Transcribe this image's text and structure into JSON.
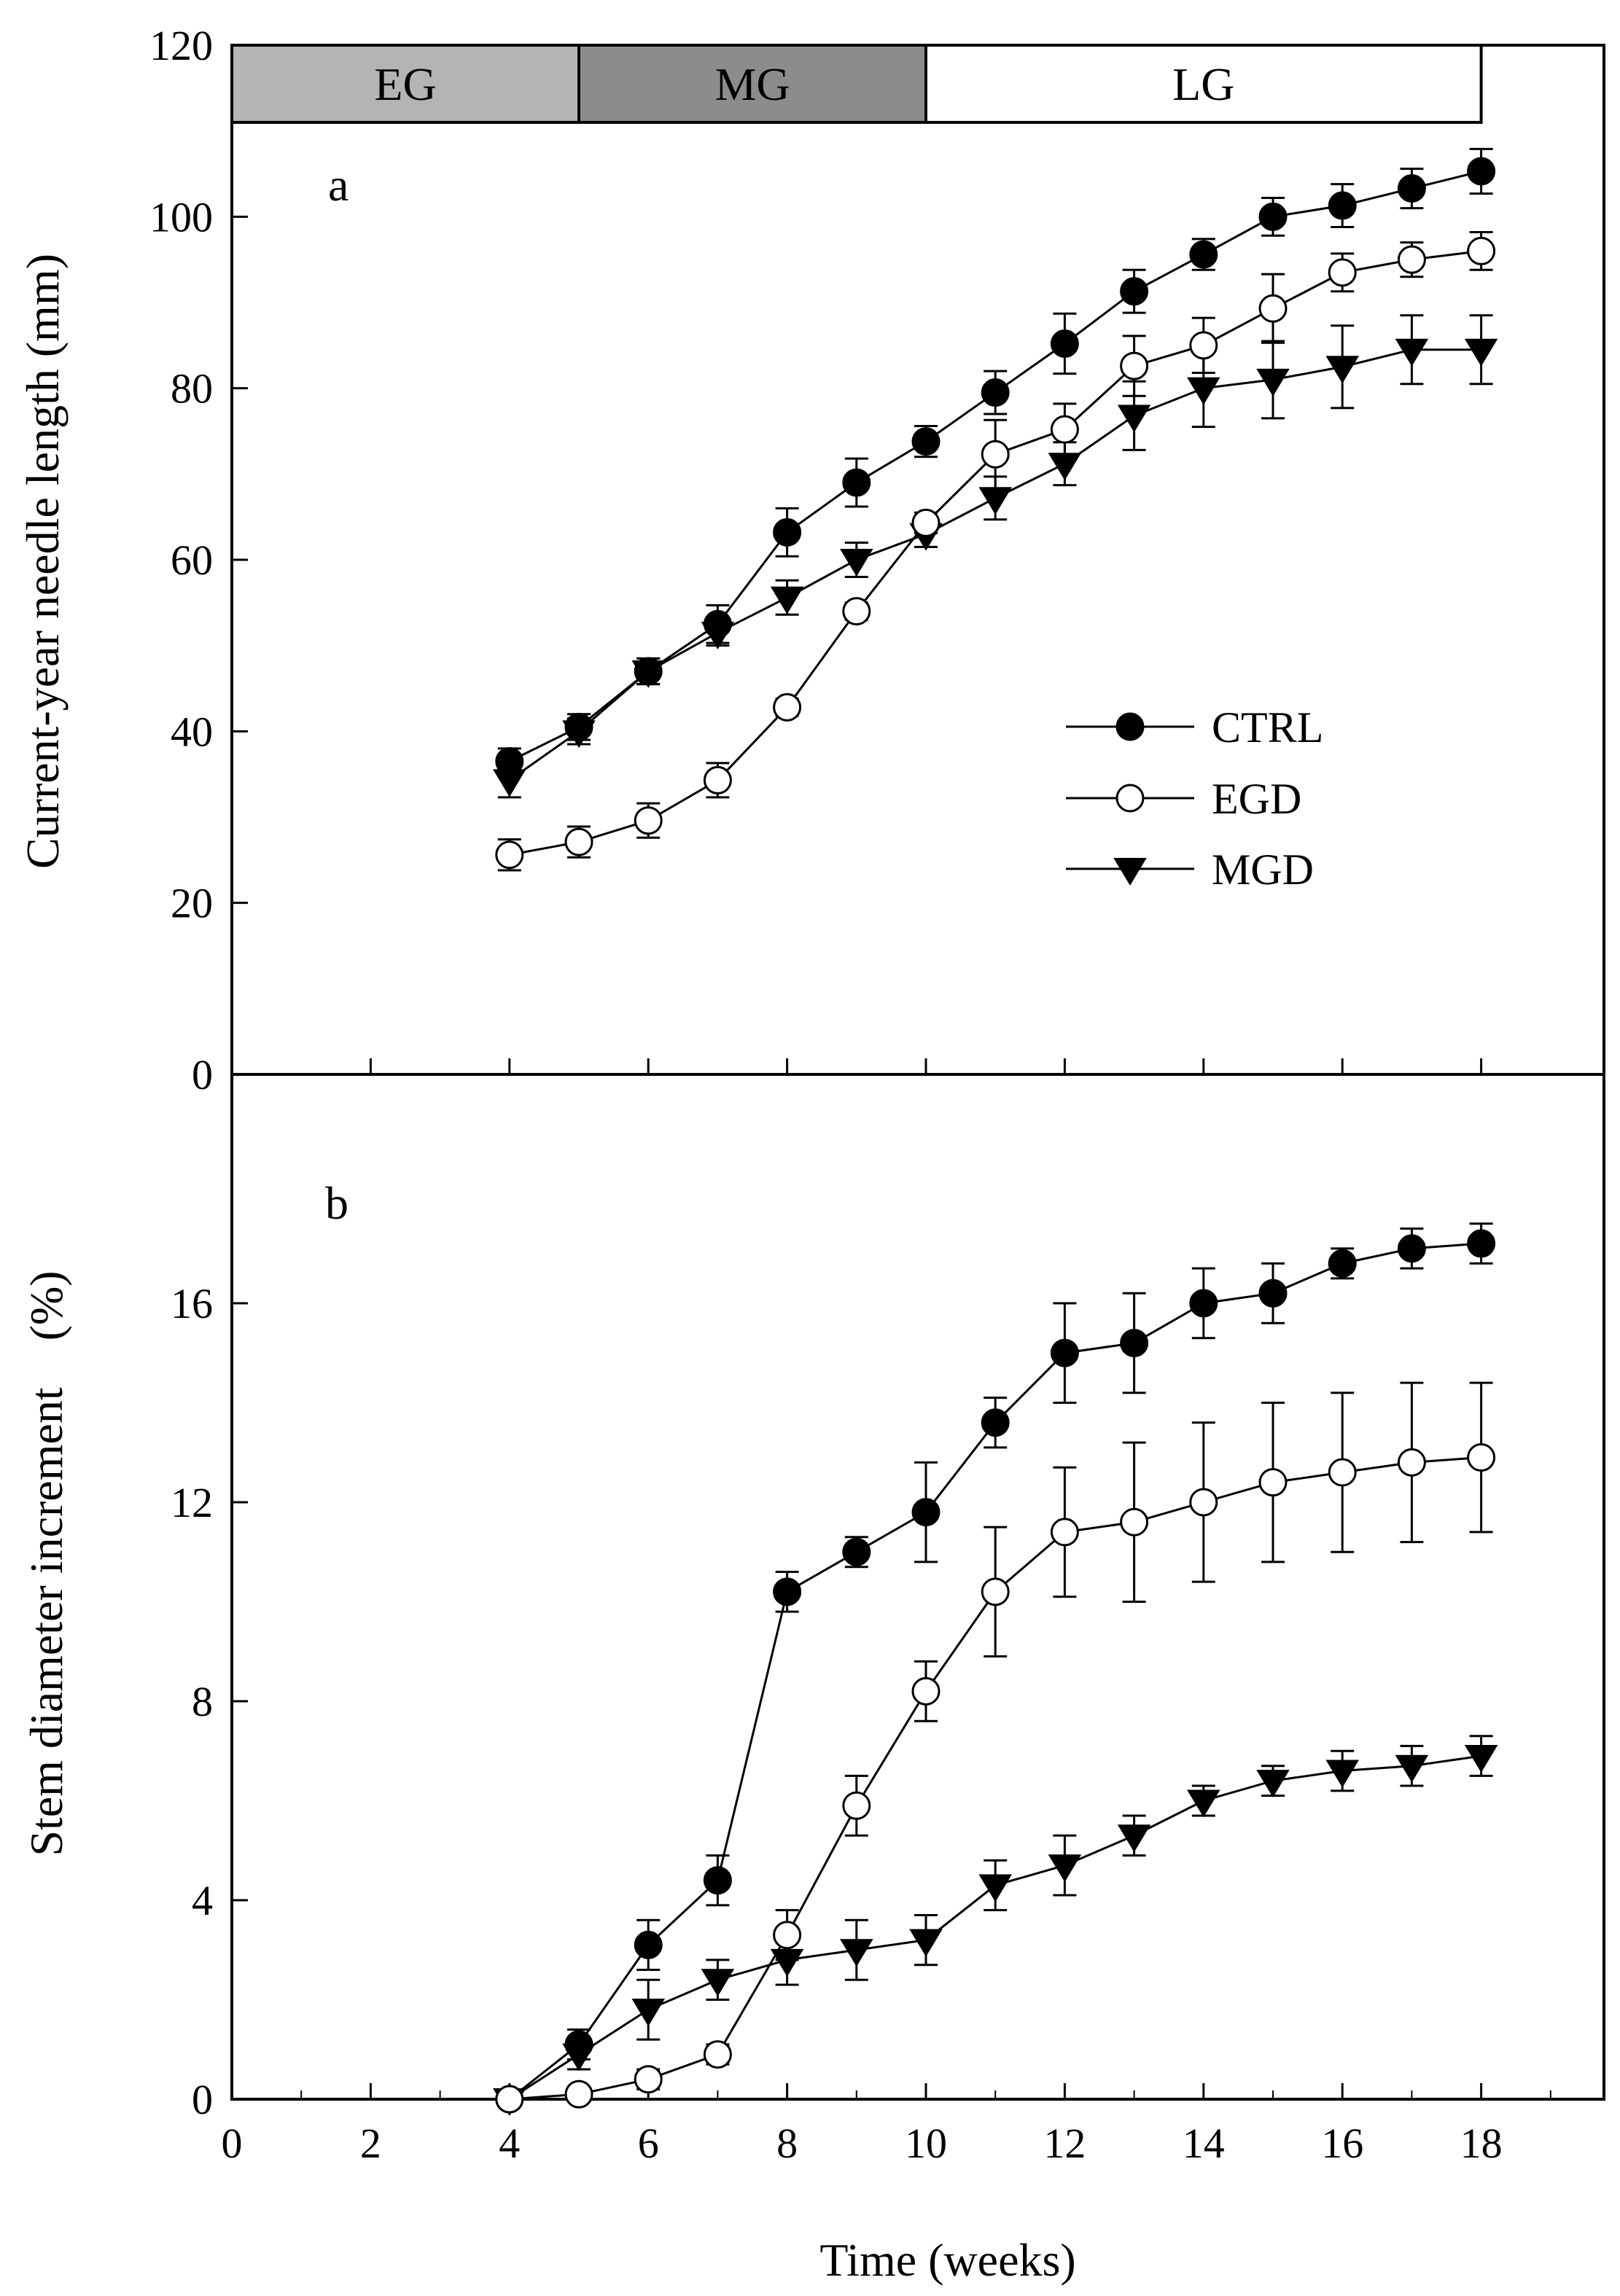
{
  "phases": {
    "labels": [
      "EG",
      "MG",
      "LG"
    ],
    "spans": [
      [
        0,
        5
      ],
      [
        5,
        10
      ],
      [
        10,
        18
      ]
    ],
    "colors": [
      "#b4b4b4",
      "#8c8c8c",
      "#ffffff"
    ]
  },
  "axes": {
    "x_title": "Time (weeks)",
    "x_ticks": [
      "0",
      "2",
      "4",
      "6",
      "8",
      "10",
      "12",
      "14",
      "16",
      "18"
    ],
    "a_y_title": "Current-year needle length (mm)",
    "a_y_ticks": [
      "0",
      "20",
      "40",
      "60",
      "80",
      "100",
      "120"
    ],
    "b_y_title": "Stem diameter increment　(%)",
    "b_y_ticks": [
      "0",
      "4",
      "8",
      "12",
      "16"
    ]
  },
  "legend": {
    "ctrl": "CTRL",
    "egd": "EGD",
    "mgd": "MGD"
  },
  "chart_data": [
    {
      "type": "line",
      "panel": "a",
      "xlabel": "",
      "ylabel": "Current-year needle length (mm)",
      "xlim": [
        0,
        20
      ],
      "ylim": [
        0,
        120
      ],
      "x": [
        4,
        5,
        6,
        7,
        8,
        9,
        10,
        11,
        12,
        13,
        14,
        15,
        16,
        17,
        18
      ],
      "series": [
        {
          "name": "CTRL",
          "marker": "filled-circle",
          "values": [
            36.5,
            40.5,
            47,
            52.5,
            63.2,
            69,
            73.8,
            79.5,
            85.2,
            91.3,
            95.6,
            100,
            101.3,
            103.3,
            105.3
          ],
          "errors": [
            1.5,
            1.5,
            1.5,
            2.2,
            2.8,
            2.8,
            1.8,
            2.5,
            3.5,
            2.5,
            1.8,
            2.2,
            2.5,
            2.3,
            2.6
          ]
        },
        {
          "name": "EGD",
          "marker": "open-circle",
          "values": [
            25.6,
            27.1,
            29.6,
            34.3,
            42.8,
            54,
            64.3,
            72.3,
            75.2,
            82.6,
            85,
            89.3,
            93.5,
            95,
            96
          ],
          "errors": [
            1.8,
            1.8,
            2,
            2,
            1,
            1,
            1.2,
            4,
            3,
            3.5,
            3.2,
            4,
            2.2,
            2,
            2.2
          ]
        },
        {
          "name": "MGD",
          "marker": "filled-triangle-down",
          "values": [
            34.3,
            40,
            47,
            51.5,
            55.6,
            60,
            63,
            67.2,
            71.2,
            76.8,
            80,
            81,
            82.5,
            84.5,
            84.5
          ],
          "errors": [
            2,
            1.5,
            1.5,
            1.5,
            2,
            2,
            1.5,
            2.5,
            2.5,
            4,
            4.5,
            4.5,
            4.8,
            4,
            4
          ]
        }
      ]
    },
    {
      "type": "line",
      "panel": "b",
      "xlabel": "Time (weeks)",
      "ylabel": "Stem diameter increment　(%)",
      "xlim": [
        0,
        20
      ],
      "ylim": [
        0,
        20.6
      ],
      "x": [
        4,
        5,
        6,
        7,
        8,
        9,
        10,
        11,
        12,
        13,
        14,
        15,
        16,
        17,
        18
      ],
      "series": [
        {
          "name": "CTRL",
          "marker": "filled-circle",
          "values": [
            0,
            1.1,
            3.1,
            4.4,
            10.2,
            11,
            11.8,
            13.6,
            15,
            15.2,
            16,
            16.2,
            16.8,
            17.1,
            17.2
          ],
          "errors": [
            0,
            0.3,
            0.5,
            0.5,
            0.4,
            0.3,
            1,
            0.5,
            1,
            1,
            0.7,
            0.6,
            0.3,
            0.4,
            0.4
          ]
        },
        {
          "name": "EGD",
          "marker": "open-circle",
          "values": [
            0,
            0.1,
            0.4,
            0.9,
            3.3,
            5.9,
            8.2,
            10.2,
            11.4,
            11.6,
            12,
            12.4,
            12.6,
            12.8,
            12.9
          ],
          "errors": [
            0,
            0.1,
            0.2,
            0.2,
            0.5,
            0.6,
            0.6,
            1.3,
            1.3,
            1.6,
            1.6,
            1.6,
            1.6,
            1.6,
            1.5
          ]
        },
        {
          "name": "MGD",
          "marker": "filled-triangle-down",
          "values": [
            0,
            0.9,
            1.8,
            2.4,
            2.8,
            3,
            3.2,
            4.3,
            4.7,
            5.3,
            6,
            6.4,
            6.6,
            6.7,
            6.9
          ],
          "errors": [
            0,
            0.3,
            0.6,
            0.4,
            0.5,
            0.6,
            0.5,
            0.5,
            0.6,
            0.4,
            0.3,
            0.3,
            0.4,
            0.4,
            0.4
          ]
        }
      ]
    }
  ]
}
